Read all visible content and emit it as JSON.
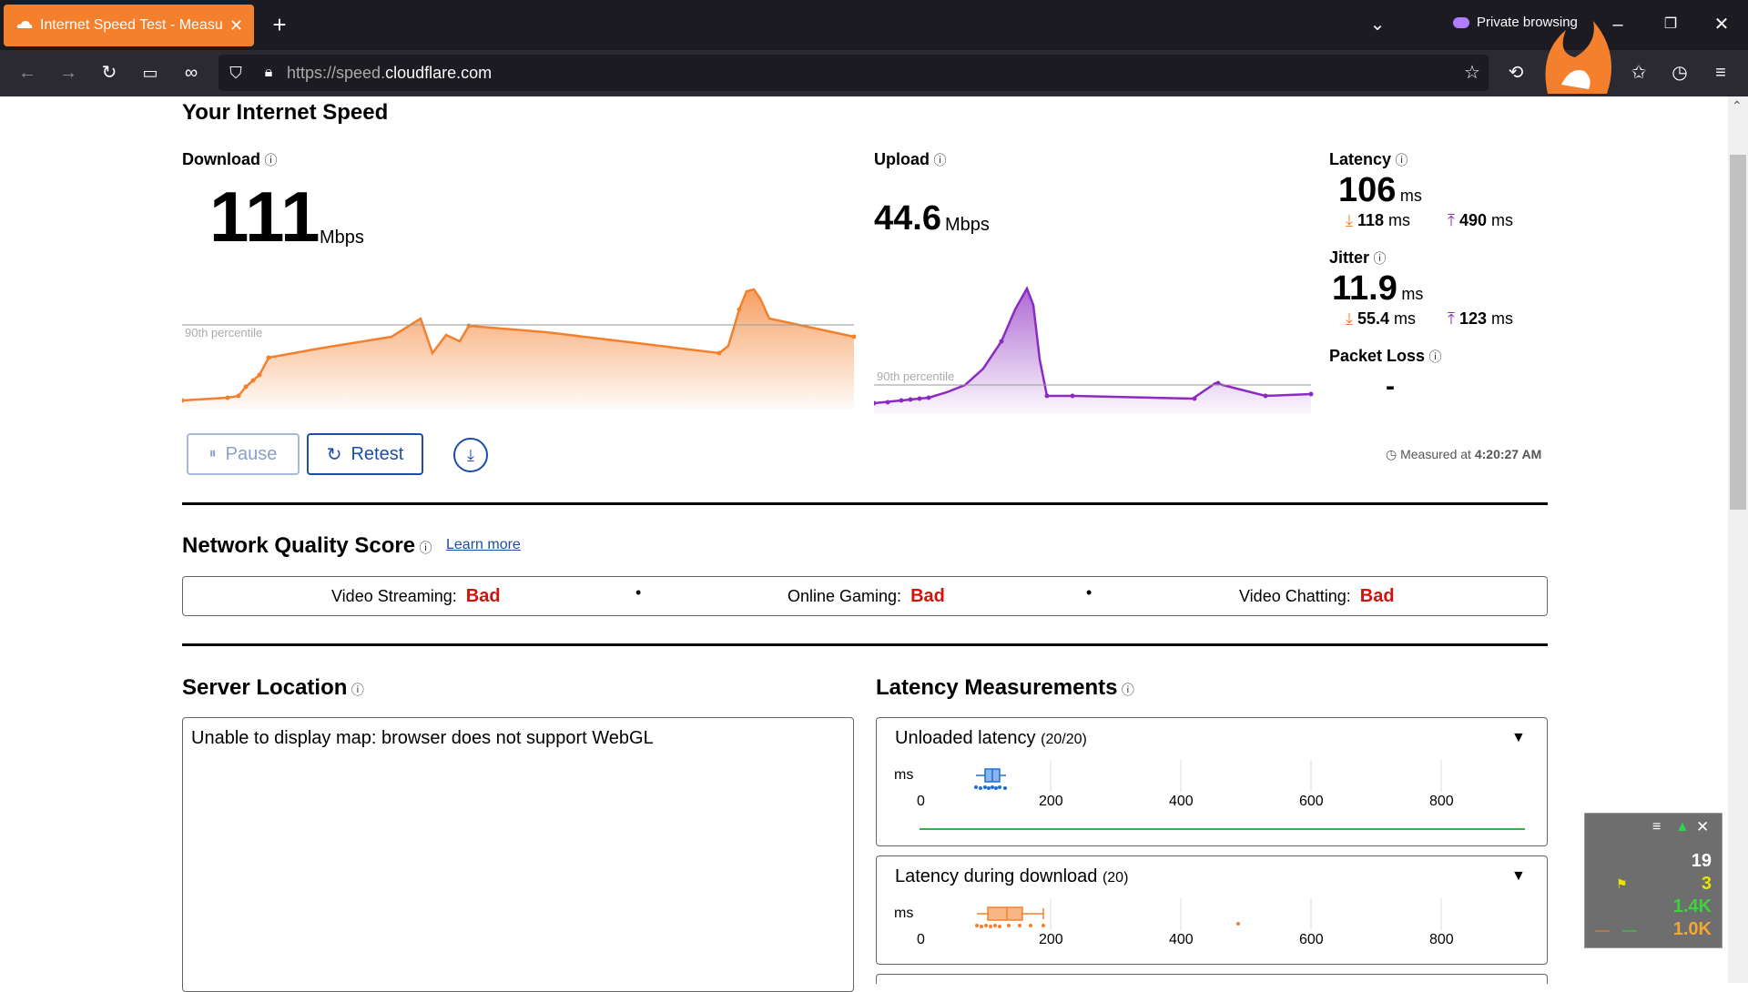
{
  "browser": {
    "tab_title": "Internet Speed Test - Measure Network Performance | Cloudflare",
    "url_prefix": "https://speed.",
    "url_domain": "cloudflare.com",
    "private_label": "Private browsing"
  },
  "page": {
    "title": "Your Internet Speed",
    "download": {
      "label": "Download",
      "value": "111",
      "unit": "Mbps"
    },
    "upload": {
      "label": "Upload",
      "value": "44.6",
      "unit": "Mbps"
    },
    "percentile_label": "90th percentile",
    "latency": {
      "label": "Latency",
      "value": "106",
      "unit": "ms",
      "down": "118",
      "up": "490",
      "sub_unit": "ms"
    },
    "jitter": {
      "label": "Jitter",
      "value": "11.9",
      "unit": "ms",
      "down": "55.4",
      "up": "123",
      "sub_unit": "ms"
    },
    "packet_loss": {
      "label": "Packet Loss",
      "value": "-"
    },
    "buttons": {
      "pause": "Pause",
      "retest": "Retest"
    },
    "measured": {
      "prefix": "Measured at",
      "time": "4:20:27 AM"
    }
  },
  "quality": {
    "title": "Network Quality Score",
    "learn_more": "Learn more",
    "items": [
      {
        "label": "Video Streaming:",
        "value": "Bad"
      },
      {
        "label": "Online Gaming:",
        "value": "Bad"
      },
      {
        "label": "Video Chatting:",
        "value": "Bad"
      }
    ]
  },
  "server": {
    "title": "Server Location",
    "message": "Unable to display map: browser does not support WebGL"
  },
  "latency_measurements": {
    "title": "Latency Measurements",
    "unit": "ms",
    "ticks": [
      "0",
      "200",
      "400",
      "600",
      "800"
    ],
    "cards": [
      {
        "title": "Unloaded latency",
        "count": "(20/20)"
      },
      {
        "title": "Latency during download",
        "count": "(20)"
      }
    ]
  },
  "overlay": {
    "v1": "19",
    "v2": "3",
    "v3": "1.4K",
    "v4": "1.0K"
  },
  "colors": {
    "download": "#f4802e",
    "upload": "#8b2bc0",
    "bad": "#d1130b",
    "accent": "#1d4da8"
  }
}
